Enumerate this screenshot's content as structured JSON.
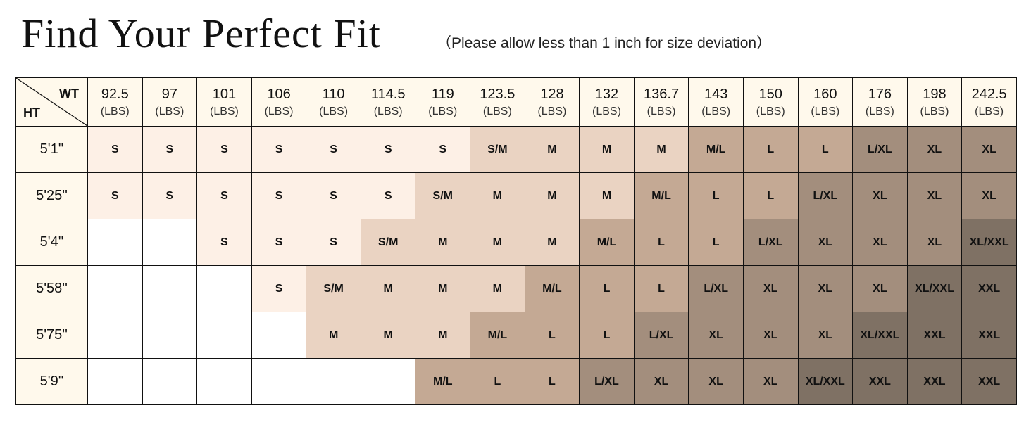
{
  "title": "Find Your Perfect Fit",
  "note": "（Please allow less than 1 inch for size deviation）",
  "table": {
    "corner_wt": "WT",
    "corner_ht": "HT",
    "unit": "(LBS)",
    "weights": [
      "92.5",
      "97",
      "101",
      "106",
      "110",
      "114.5",
      "119",
      "123.5",
      "128",
      "132",
      "136.7",
      "143",
      "150",
      "160",
      "176",
      "198",
      "242.5"
    ],
    "rows": [
      {
        "height": "5'1''",
        "sizes": [
          "S",
          "S",
          "S",
          "S",
          "S",
          "S",
          "S",
          "S/M",
          "M",
          "M",
          "M",
          "M/L",
          "L",
          "L",
          "L/XL",
          "XL",
          "XL"
        ]
      },
      {
        "height": "5'25''",
        "sizes": [
          "S",
          "S",
          "S",
          "S",
          "S",
          "S",
          "S/M",
          "M",
          "M",
          "M",
          "M/L",
          "L",
          "L",
          "L/XL",
          "XL",
          "XL",
          "XL"
        ]
      },
      {
        "height": "5'4''",
        "sizes": [
          "",
          "",
          "S",
          "S",
          "S",
          "S/M",
          "M",
          "M",
          "M",
          "M/L",
          "L",
          "L",
          "L/XL",
          "XL",
          "XL",
          "XL",
          "XL/XXL"
        ]
      },
      {
        "height": "5'58''",
        "sizes": [
          "",
          "",
          "",
          "S",
          "S/M",
          "M",
          "M",
          "M",
          "M/L",
          "L",
          "L",
          "L/XL",
          "XL",
          "XL",
          "XL",
          "XL/XXL",
          "XXL"
        ]
      },
      {
        "height": "5'75''",
        "sizes": [
          "",
          "",
          "",
          "",
          "M",
          "M",
          "M",
          "M/L",
          "L",
          "L",
          "L/XL",
          "XL",
          "XL",
          "XL",
          "XL/XXL",
          "XXL",
          "XXL"
        ]
      },
      {
        "height": "5'9''",
        "sizes": [
          "",
          "",
          "",
          "",
          "",
          "",
          "M/L",
          "L",
          "L",
          "L/XL",
          "XL",
          "XL",
          "XL",
          "XL/XXL",
          "XXL",
          "XXL",
          "XXL"
        ]
      }
    ]
  },
  "colors": {
    "header": "#fff9ec",
    "empty": "#ffffff",
    "S": "#fdf0e6",
    "S/M": "#ead3c2",
    "M": "#ead3c2",
    "M/L": "#c4a994",
    "L": "#c4a994",
    "L/XL": "#a38e7d",
    "XL": "#a38e7d",
    "XL/XXL": "#7f7164",
    "XXL": "#7f7164"
  }
}
